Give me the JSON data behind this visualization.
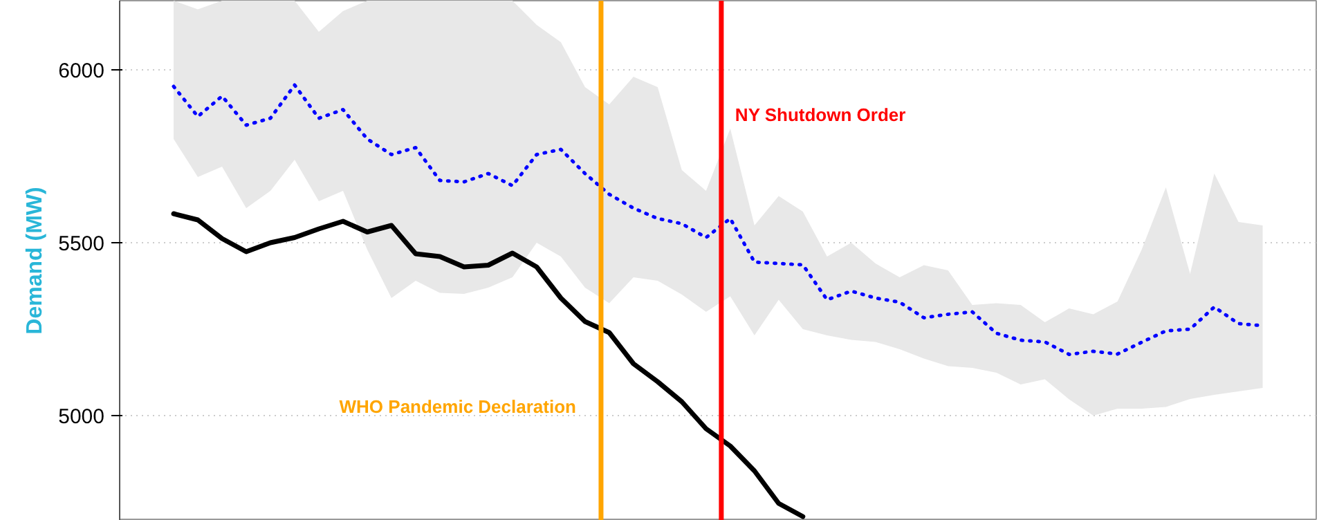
{
  "chart_data": {
    "type": "line",
    "ylabel": "Demand (MW)",
    "ylim": [
      4696,
      6200
    ],
    "yticks": [
      5000,
      5500,
      6000
    ],
    "tick_labels": "y",
    "grid": "y",
    "categories": [
      null,
      null,
      null,
      null,
      null,
      null,
      null,
      null,
      null,
      null,
      null,
      null,
      null,
      null,
      null,
      null,
      null,
      null,
      null,
      null,
      null,
      null,
      null,
      null,
      null,
      null,
      null,
      null,
      null,
      null,
      null,
      null,
      null,
      null,
      null,
      null,
      null,
      null,
      null,
      null,
      null,
      null,
      null,
      null,
      null,
      null
    ],
    "series": [
      {
        "color": "#0000ff",
        "line_style": "dotted",
        "values": [
          5952,
          5865,
          5924,
          5840,
          5860,
          5956,
          5860,
          5885,
          5800,
          5755,
          5775,
          5680,
          5676,
          5700,
          5665,
          5755,
          5770,
          5700,
          5640,
          5600,
          5570,
          5555,
          5515,
          5570,
          5444,
          5440,
          5436,
          5335,
          5360,
          5340,
          5328,
          5283,
          5293,
          5300,
          5238,
          5218,
          5213,
          5177,
          5186,
          5178,
          5212,
          5245,
          5250,
          5314,
          5266,
          5260
        ],
        "upper": [
          6200,
          6175,
          6200,
          6200,
          6200,
          6200,
          6110,
          6170,
          6200,
          6200,
          6200,
          6200,
          6200,
          6200,
          6200,
          6130,
          6080,
          5950,
          5900,
          5980,
          5950,
          5710,
          5650,
          5830,
          5550,
          5635,
          5590,
          5460,
          5500,
          5440,
          5400,
          5435,
          5420,
          5320,
          5325,
          5320,
          5270,
          5310,
          5293,
          5330,
          5480,
          5660,
          5410,
          5700,
          5560,
          5550
        ],
        "lower": [
          5800,
          5690,
          5720,
          5600,
          5650,
          5740,
          5620,
          5650,
          5480,
          5340,
          5390,
          5355,
          5352,
          5370,
          5400,
          5500,
          5460,
          5370,
          5325,
          5400,
          5390,
          5350,
          5300,
          5345,
          5232,
          5335,
          5250,
          5232,
          5219,
          5213,
          5192,
          5165,
          5143,
          5138,
          5124,
          5090,
          5105,
          5047,
          5000,
          5020,
          5020,
          5025,
          5048,
          5060,
          5070,
          5080
        ]
      },
      {
        "color": "#000000",
        "line_style": "solid",
        "values": [
          5584,
          5566,
          5512,
          5474,
          5500,
          5515,
          5540,
          5562,
          5531,
          5550,
          5468,
          5460,
          5430,
          5435,
          5470,
          5430,
          5340,
          5272,
          5240,
          5150,
          5098,
          5040,
          4962,
          4912,
          4840,
          4746,
          4708,
          null,
          null,
          null,
          null,
          null,
          null,
          null,
          null,
          null,
          null,
          null,
          null,
          null,
          null,
          null,
          null,
          null,
          null,
          null
        ]
      }
    ],
    "annotations": [
      "WHO Pandemic Declaration",
      "NY Shutdown Order"
    ]
  }
}
